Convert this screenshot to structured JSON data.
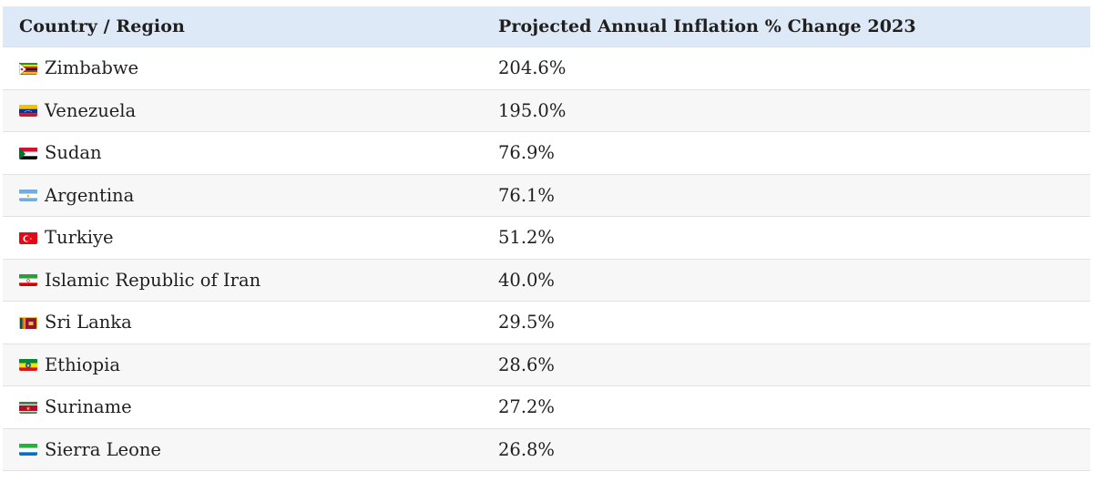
{
  "chart_data": {
    "type": "table",
    "columns": [
      "Country / Region",
      "Projected Annual Inflation % Change 2023"
    ],
    "rows": [
      {
        "country": "Zimbabwe",
        "value": "204.6%",
        "flag_icon": "zimbabwe-flag-icon"
      },
      {
        "country": "Venezuela",
        "value": "195.0%",
        "flag_icon": "venezuela-flag-icon"
      },
      {
        "country": "Sudan",
        "value": "76.9%",
        "flag_icon": "sudan-flag-icon"
      },
      {
        "country": "Argentina",
        "value": "76.1%",
        "flag_icon": "argentina-flag-icon"
      },
      {
        "country": "Turkiye",
        "value": "51.2%",
        "flag_icon": "turkiye-flag-icon"
      },
      {
        "country": "Islamic Republic of Iran",
        "value": "40.0%",
        "flag_icon": "iran-flag-icon"
      },
      {
        "country": "Sri Lanka",
        "value": "29.5%",
        "flag_icon": "sri-lanka-flag-icon"
      },
      {
        "country": "Ethiopia",
        "value": "28.6%",
        "flag_icon": "ethiopia-flag-icon"
      },
      {
        "country": "Suriname",
        "value": "27.2%",
        "flag_icon": "suriname-flag-icon"
      },
      {
        "country": "Sierra Leone",
        "value": "26.8%",
        "flag_icon": "sierra-leone-flag-icon"
      }
    ],
    "header_background": "#dde9f6",
    "alt_row_background": "#f7f7f7"
  }
}
